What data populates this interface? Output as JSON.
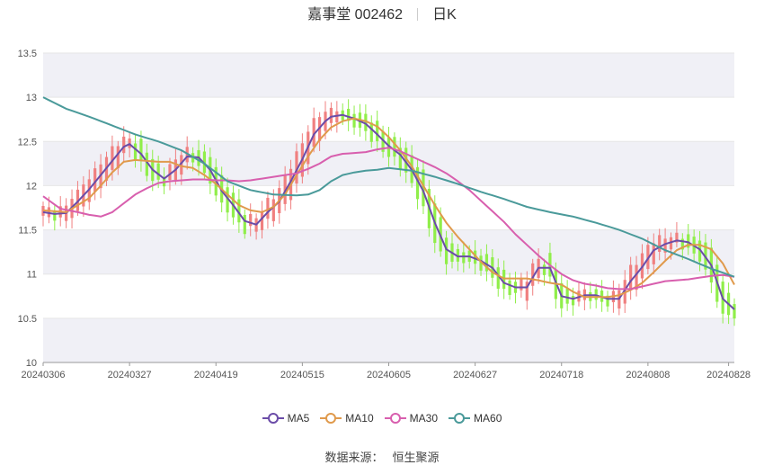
{
  "title": {
    "name": "嘉事堂 002462",
    "period": "日K"
  },
  "source": {
    "label": "数据来源：",
    "value": "恒生聚源"
  },
  "colors": {
    "up": "#f08080",
    "down": "#90ee4a",
    "ma5": "#6b4ca8",
    "ma10": "#e09a4c",
    "ma30": "#d85fae",
    "ma60": "#4a9a9a",
    "band": "#f0f0f6",
    "grid": "#e6e6e6"
  },
  "chart_data": {
    "type": "candlestick",
    "title": "嘉事堂 002462 日K",
    "ylim": [
      10,
      13.5
    ],
    "y_ticks": [
      "13.5",
      "13",
      "12.5",
      "12",
      "11.5",
      "11",
      "10.5",
      "10"
    ],
    "x_ticks": [
      "20240306",
      "20240327",
      "20240419",
      "20240515",
      "20240605",
      "20240627",
      "20240718",
      "20240808",
      "20240828"
    ],
    "x_tick_index": [
      0,
      15,
      30,
      45,
      60,
      75,
      90,
      105,
      119
    ],
    "grid": true,
    "legend_position": "bottom",
    "series": [
      {
        "name": "MA5",
        "color": "#6b4ca8",
        "keys": [
          [
            0,
            11.7
          ],
          [
            2,
            11.68
          ],
          [
            4,
            11.69
          ],
          [
            6,
            11.82
          ],
          [
            8,
            11.96
          ],
          [
            10,
            12.12
          ],
          [
            12,
            12.28
          ],
          [
            14,
            12.44
          ],
          [
            15,
            12.47
          ],
          [
            17,
            12.36
          ],
          [
            19,
            12.18
          ],
          [
            21,
            12.08
          ],
          [
            23,
            12.18
          ],
          [
            25,
            12.33
          ],
          [
            27,
            12.32
          ],
          [
            29,
            12.18
          ],
          [
            31,
            11.94
          ],
          [
            33,
            11.78
          ],
          [
            35,
            11.6
          ],
          [
            37,
            11.56
          ],
          [
            39,
            11.7
          ],
          [
            41,
            11.82
          ],
          [
            43,
            12.05
          ],
          [
            45,
            12.3
          ],
          [
            47,
            12.58
          ],
          [
            49,
            12.73
          ],
          [
            50,
            12.78
          ],
          [
            52,
            12.8
          ],
          [
            54,
            12.76
          ],
          [
            56,
            12.7
          ],
          [
            58,
            12.58
          ],
          [
            60,
            12.45
          ],
          [
            62,
            12.35
          ],
          [
            64,
            12.18
          ],
          [
            66,
            11.94
          ],
          [
            68,
            11.58
          ],
          [
            70,
            11.28
          ],
          [
            72,
            11.2
          ],
          [
            74,
            11.2
          ],
          [
            76,
            11.15
          ],
          [
            78,
            11.07
          ],
          [
            80,
            10.9
          ],
          [
            82,
            10.85
          ],
          [
            84,
            10.85
          ],
          [
            86,
            11.07
          ],
          [
            88,
            11.07
          ],
          [
            90,
            10.75
          ],
          [
            92,
            10.72
          ],
          [
            94,
            10.76
          ],
          [
            96,
            10.76
          ],
          [
            98,
            10.72
          ],
          [
            100,
            10.72
          ],
          [
            102,
            10.92
          ],
          [
            104,
            11.08
          ],
          [
            106,
            11.27
          ],
          [
            108,
            11.34
          ],
          [
            110,
            11.38
          ],
          [
            112,
            11.36
          ],
          [
            114,
            11.28
          ],
          [
            116,
            11.1
          ],
          [
            118,
            10.72
          ],
          [
            120,
            10.6
          ]
        ]
      },
      {
        "name": "MA10",
        "color": "#e09a4c",
        "keys": [
          [
            0,
            11.72
          ],
          [
            4,
            11.7
          ],
          [
            6,
            11.78
          ],
          [
            8,
            11.86
          ],
          [
            10,
            12.0
          ],
          [
            12,
            12.15
          ],
          [
            14,
            12.27
          ],
          [
            16,
            12.29
          ],
          [
            18,
            12.28
          ],
          [
            20,
            12.27
          ],
          [
            22,
            12.27
          ],
          [
            24,
            12.22
          ],
          [
            26,
            12.2
          ],
          [
            28,
            12.12
          ],
          [
            30,
            12.02
          ],
          [
            32,
            11.9
          ],
          [
            34,
            11.78
          ],
          [
            36,
            11.72
          ],
          [
            38,
            11.7
          ],
          [
            40,
            11.76
          ],
          [
            42,
            11.9
          ],
          [
            44,
            12.12
          ],
          [
            46,
            12.33
          ],
          [
            48,
            12.52
          ],
          [
            50,
            12.66
          ],
          [
            52,
            12.73
          ],
          [
            54,
            12.76
          ],
          [
            56,
            12.73
          ],
          [
            58,
            12.67
          ],
          [
            60,
            12.55
          ],
          [
            62,
            12.4
          ],
          [
            64,
            12.22
          ],
          [
            66,
            12.0
          ],
          [
            68,
            11.78
          ],
          [
            70,
            11.58
          ],
          [
            72,
            11.42
          ],
          [
            74,
            11.28
          ],
          [
            76,
            11.14
          ],
          [
            78,
            11.02
          ],
          [
            80,
            10.95
          ],
          [
            82,
            10.95
          ],
          [
            84,
            10.95
          ],
          [
            86,
            10.93
          ],
          [
            88,
            10.9
          ],
          [
            90,
            10.88
          ],
          [
            92,
            10.8
          ],
          [
            94,
            10.74
          ],
          [
            96,
            10.74
          ],
          [
            98,
            10.74
          ],
          [
            100,
            10.76
          ],
          [
            102,
            10.82
          ],
          [
            104,
            10.9
          ],
          [
            106,
            11.02
          ],
          [
            108,
            11.15
          ],
          [
            110,
            11.27
          ],
          [
            112,
            11.33
          ],
          [
            114,
            11.33
          ],
          [
            116,
            11.28
          ],
          [
            118,
            11.12
          ],
          [
            120,
            10.88
          ]
        ]
      },
      {
        "name": "MA30",
        "color": "#d85fae",
        "keys": [
          [
            0,
            11.88
          ],
          [
            3,
            11.74
          ],
          [
            6,
            11.7
          ],
          [
            8,
            11.67
          ],
          [
            10,
            11.65
          ],
          [
            12,
            11.7
          ],
          [
            14,
            11.8
          ],
          [
            16,
            11.9
          ],
          [
            18,
            11.97
          ],
          [
            20,
            12.03
          ],
          [
            22,
            12.05
          ],
          [
            24,
            12.06
          ],
          [
            26,
            12.07
          ],
          [
            28,
            12.07
          ],
          [
            30,
            12.06
          ],
          [
            32,
            12.06
          ],
          [
            34,
            12.05
          ],
          [
            36,
            12.06
          ],
          [
            38,
            12.08
          ],
          [
            40,
            12.1
          ],
          [
            42,
            12.12
          ],
          [
            44,
            12.14
          ],
          [
            46,
            12.19
          ],
          [
            48,
            12.25
          ],
          [
            50,
            12.33
          ],
          [
            52,
            12.36
          ],
          [
            54,
            12.37
          ],
          [
            56,
            12.38
          ],
          [
            58,
            12.41
          ],
          [
            60,
            12.43
          ],
          [
            62,
            12.39
          ],
          [
            64,
            12.33
          ],
          [
            66,
            12.27
          ],
          [
            68,
            12.21
          ],
          [
            70,
            12.14
          ],
          [
            72,
            12.05
          ],
          [
            74,
            11.95
          ],
          [
            76,
            11.83
          ],
          [
            78,
            11.71
          ],
          [
            80,
            11.59
          ],
          [
            82,
            11.45
          ],
          [
            84,
            11.33
          ],
          [
            86,
            11.21
          ],
          [
            88,
            11.1
          ],
          [
            90,
            11.0
          ],
          [
            92,
            10.93
          ],
          [
            94,
            10.89
          ],
          [
            96,
            10.87
          ],
          [
            98,
            10.84
          ],
          [
            100,
            10.83
          ],
          [
            102,
            10.83
          ],
          [
            104,
            10.86
          ],
          [
            106,
            10.89
          ],
          [
            108,
            10.92
          ],
          [
            110,
            10.93
          ],
          [
            112,
            10.94
          ],
          [
            114,
            10.96
          ],
          [
            116,
            10.98
          ],
          [
            118,
            10.99
          ],
          [
            120,
            10.97
          ]
        ]
      },
      {
        "name": "MA60",
        "color": "#4a9a9a",
        "keys": [
          [
            0,
            13.0
          ],
          [
            4,
            12.87
          ],
          [
            8,
            12.78
          ],
          [
            12,
            12.68
          ],
          [
            16,
            12.58
          ],
          [
            20,
            12.5
          ],
          [
            24,
            12.4
          ],
          [
            28,
            12.25
          ],
          [
            32,
            12.05
          ],
          [
            36,
            11.95
          ],
          [
            40,
            11.9
          ],
          [
            44,
            11.89
          ],
          [
            46,
            11.9
          ],
          [
            48,
            11.95
          ],
          [
            50,
            12.05
          ],
          [
            52,
            12.12
          ],
          [
            54,
            12.15
          ],
          [
            56,
            12.17
          ],
          [
            58,
            12.18
          ],
          [
            60,
            12.2
          ],
          [
            64,
            12.17
          ],
          [
            68,
            12.1
          ],
          [
            72,
            12.02
          ],
          [
            76,
            11.93
          ],
          [
            80,
            11.85
          ],
          [
            84,
            11.76
          ],
          [
            88,
            11.7
          ],
          [
            92,
            11.65
          ],
          [
            96,
            11.58
          ],
          [
            100,
            11.5
          ],
          [
            104,
            11.4
          ],
          [
            108,
            11.27
          ],
          [
            112,
            11.17
          ],
          [
            116,
            11.06
          ],
          [
            120,
            10.97
          ]
        ]
      }
    ]
  }
}
